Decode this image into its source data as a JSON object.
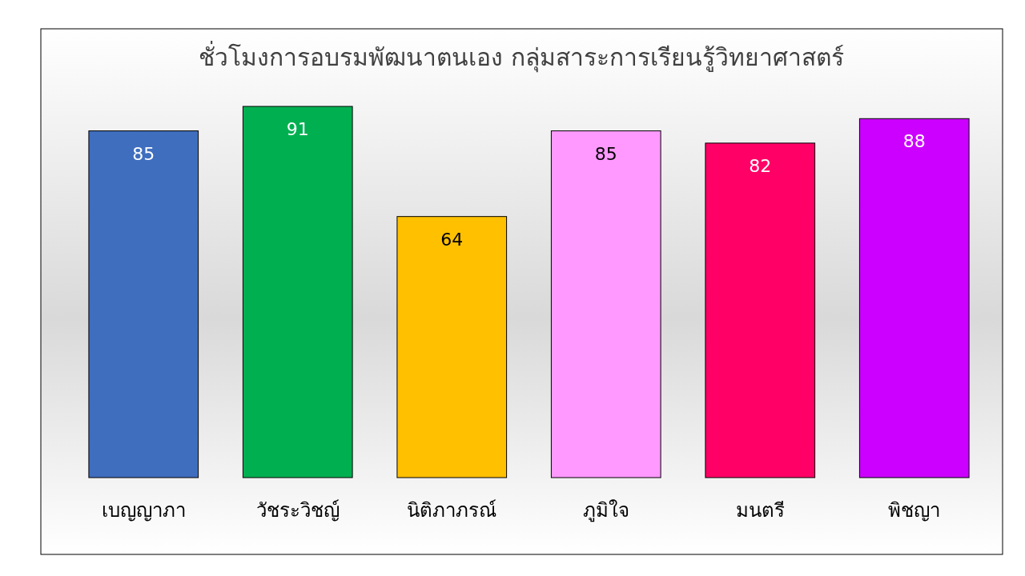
{
  "chart_data": {
    "type": "bar",
    "title": "ชั่วโมงการอบรมพัฒนาตนเอง กลุ่มสาระการเรียนรู้วิทยาศาสตร์",
    "categories": [
      "เบญญาภา",
      "วัชระวิชญ์",
      "นิติภาภรณ์",
      "ภูมิใจ",
      "มนตรี",
      "พิชญา"
    ],
    "values": [
      85,
      91,
      64,
      85,
      82,
      88
    ],
    "colors": [
      "#3f6ebf",
      "#00b050",
      "#ffc000",
      "#ff99ff",
      "#ff0066",
      "#cc00ff"
    ],
    "data_labels": true
  }
}
